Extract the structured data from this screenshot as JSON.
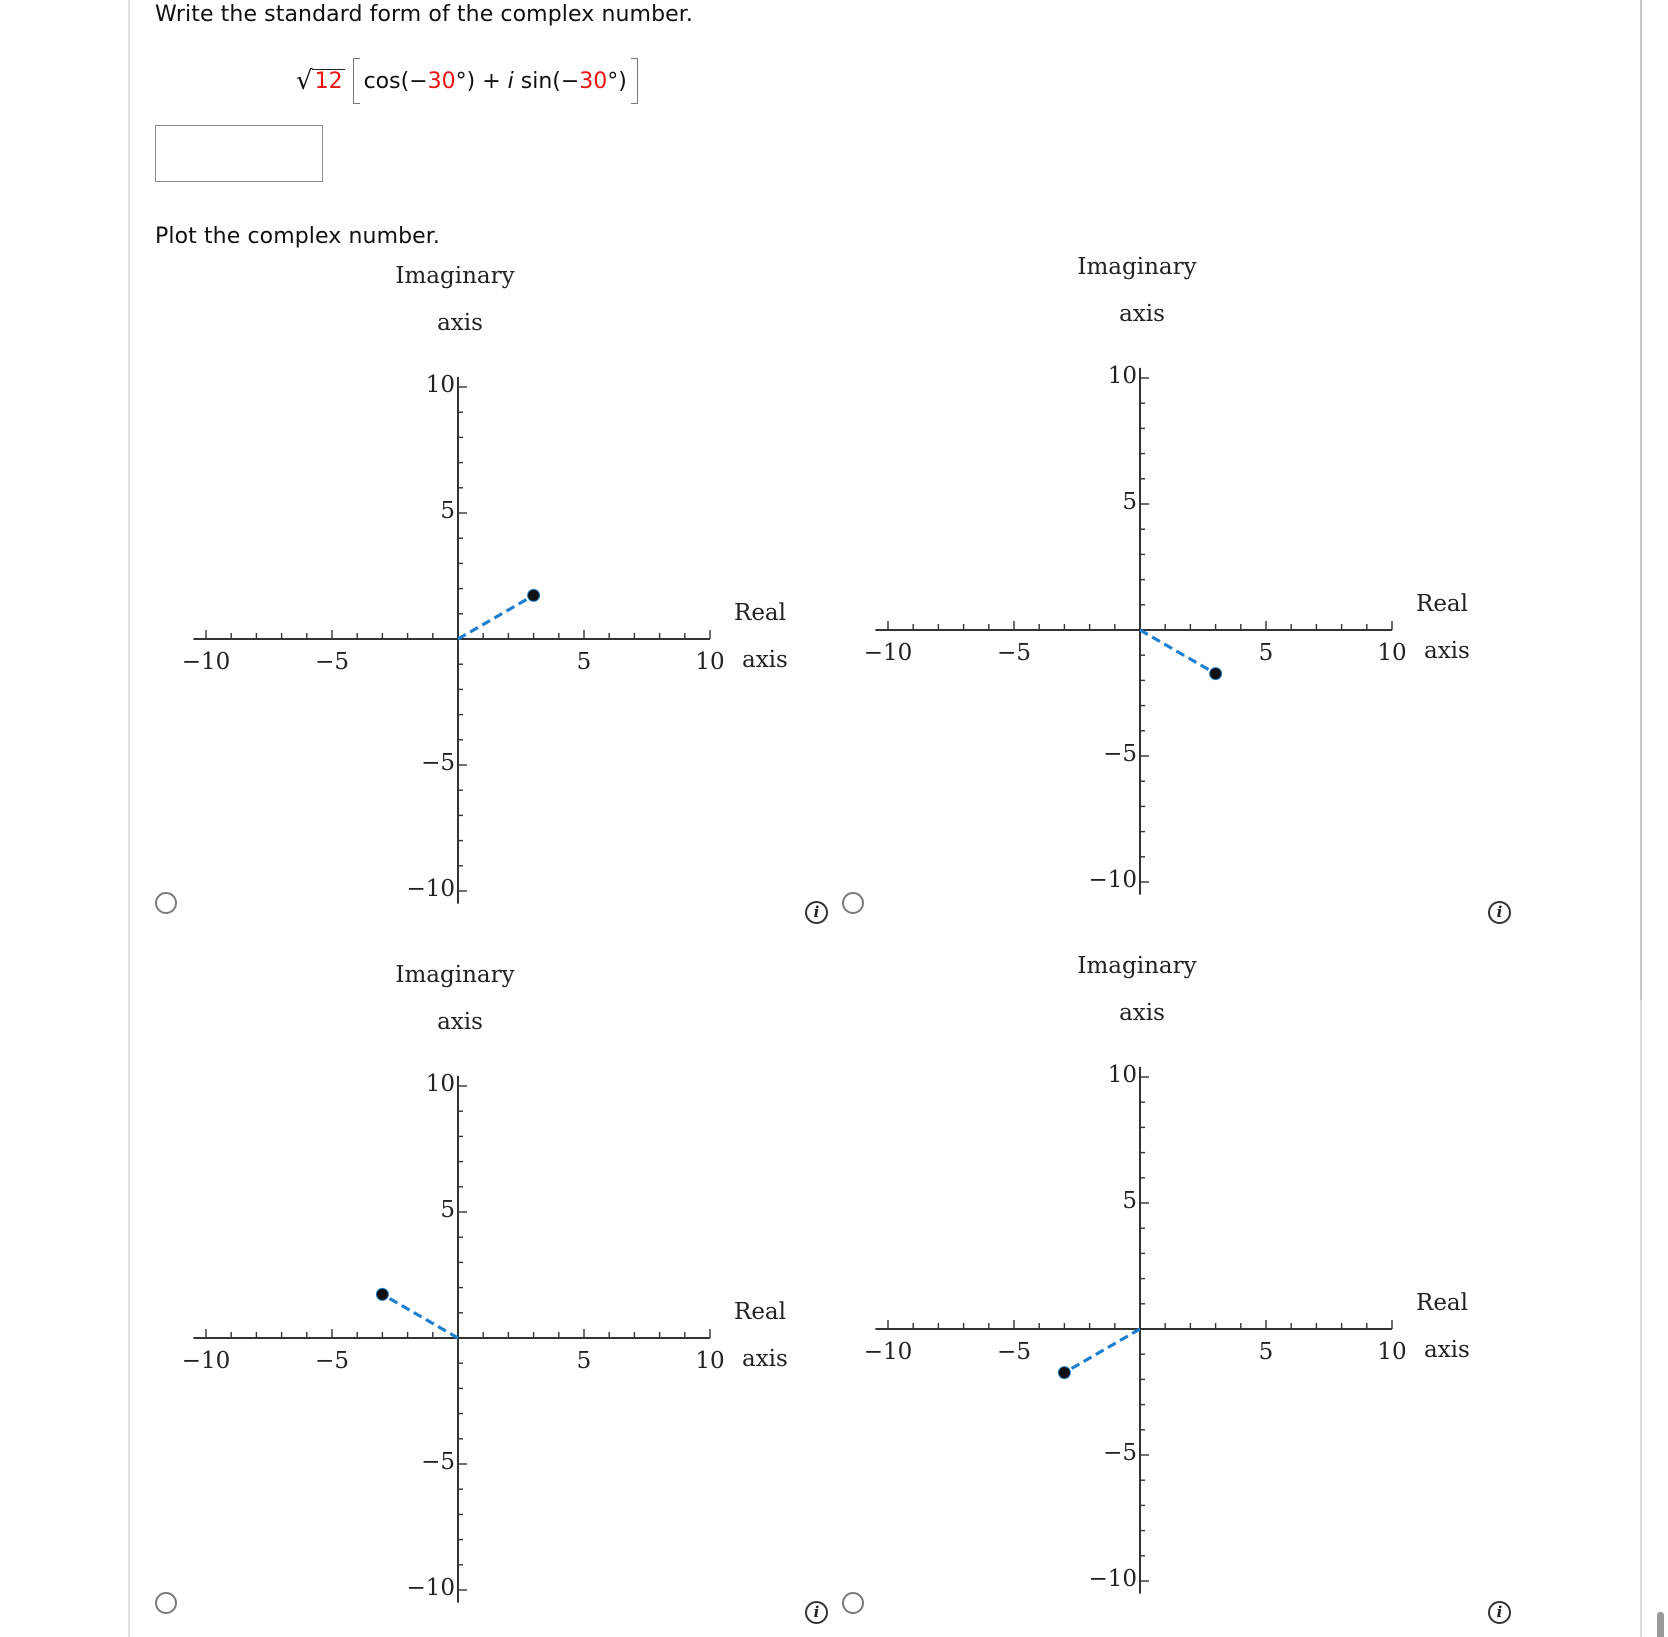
{
  "question": {
    "prompt": "Write the standard form of the complex number.",
    "formula": {
      "radicand": "12",
      "cos_prefix": "cos(",
      "minus1": "−",
      "angle1": "30",
      "suffix1": "°) + ",
      "i": "i",
      "sin_prefix": " sin(",
      "minus2": "−",
      "angle2": "30",
      "suffix2": "°)"
    },
    "answer_value": "",
    "plot_prompt": "Plot the complex number."
  },
  "graph_labels": {
    "imag_title_1": "Imaginary",
    "imag_title_2": "axis",
    "real_title_1": "Real",
    "real_title_2": "axis",
    "x_ticks": [
      "−10",
      "−5",
      "5",
      "10"
    ],
    "y_ticks": [
      "10",
      "5",
      "−5",
      "−10"
    ]
  },
  "options": [
    {
      "id": "A",
      "point": [
        3,
        1.73
      ],
      "selected": false
    },
    {
      "id": "B",
      "point": [
        3,
        -1.73
      ],
      "selected": false
    },
    {
      "id": "C",
      "point": [
        -3,
        1.73
      ],
      "selected": false
    },
    {
      "id": "D",
      "point": [
        -3,
        -1.73
      ],
      "selected": false
    }
  ],
  "colors": {
    "accent_red": "#ee1111",
    "vector_blue": "#1f7fd0",
    "point": "#000000"
  },
  "chart_data": [
    {
      "type": "scatter",
      "title": "Option A",
      "xlabel": "Real axis",
      "ylabel": "Imaginary axis",
      "xlim": [
        -10,
        10
      ],
      "ylim": [
        -10,
        10
      ],
      "x": [
        3
      ],
      "y": [
        1.73
      ],
      "line_from_origin": true
    },
    {
      "type": "scatter",
      "title": "Option B",
      "xlabel": "Real axis",
      "ylabel": "Imaginary axis",
      "xlim": [
        -10,
        10
      ],
      "ylim": [
        -10,
        10
      ],
      "x": [
        3
      ],
      "y": [
        -1.73
      ],
      "line_from_origin": true
    },
    {
      "type": "scatter",
      "title": "Option C",
      "xlabel": "Real axis",
      "ylabel": "Imaginary axis",
      "xlim": [
        -10,
        10
      ],
      "ylim": [
        -10,
        10
      ],
      "x": [
        -3
      ],
      "y": [
        1.73
      ],
      "line_from_origin": true
    },
    {
      "type": "scatter",
      "title": "Option D",
      "xlabel": "Real axis",
      "ylabel": "Imaginary axis",
      "xlim": [
        -10,
        10
      ],
      "ylim": [
        -10,
        10
      ],
      "x": [
        -3
      ],
      "y": [
        -1.73
      ],
      "line_from_origin": true
    }
  ]
}
